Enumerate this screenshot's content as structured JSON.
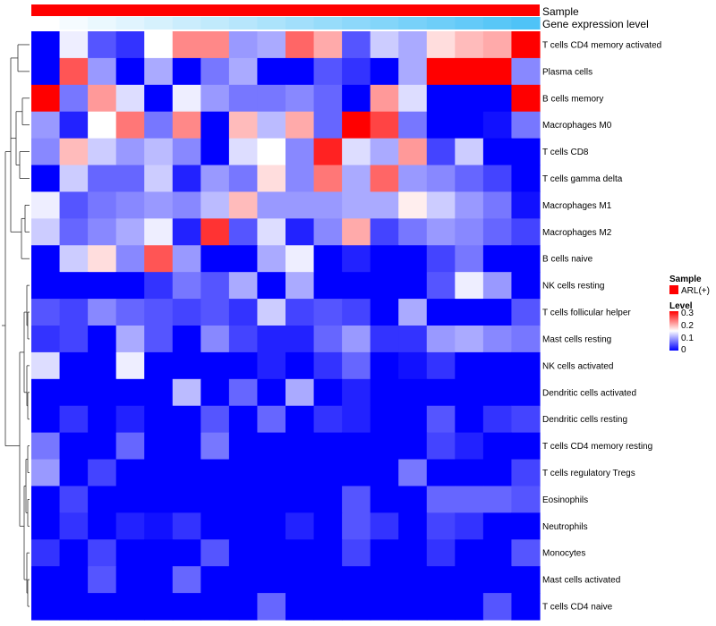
{
  "chart_data": {
    "type": "heatmap",
    "annotation_rows": [
      "Sample",
      "Gene expression level"
    ],
    "rows": [
      "T cells CD4 memory activated",
      "Plasma cells",
      "B cells memory",
      "Macrophages M0",
      "T cells CD8",
      "T cells gamma delta",
      "Macrophages M1",
      "Macrophages M2",
      "B cells naive",
      "NK cells resting",
      "T cells follicular helper",
      "Mast cells resting",
      "NK cells activated",
      "Dendritic cells activated",
      "Dendritic cells resting",
      "T cells CD4 memory resting",
      "T cells regulatory  Tregs",
      "Eosinophils",
      "Neutrophils",
      "Monocytes",
      "Mast cells activated",
      "T cells CD4 naive"
    ],
    "n_columns": 18,
    "values": [
      [
        0.0,
        0.14,
        0.05,
        0.03,
        0.15,
        0.22,
        0.22,
        0.09,
        0.1,
        0.24,
        0.2,
        0.05,
        0.12,
        0.1,
        0.17,
        0.19,
        0.2,
        0.3
      ],
      [
        0.0,
        0.25,
        0.09,
        0.0,
        0.1,
        0.0,
        0.07,
        0.1,
        0.0,
        0.0,
        0.05,
        0.03,
        0.0,
        0.1,
        0.3,
        0.3,
        0.3,
        0.08
      ],
      [
        0.3,
        0.07,
        0.21,
        0.13,
        0.0,
        0.14,
        0.09,
        0.07,
        0.07,
        0.08,
        0.06,
        0.0,
        0.21,
        0.13,
        0.0,
        0.0,
        0.0,
        0.3
      ],
      [
        0.09,
        0.02,
        0.15,
        0.23,
        0.07,
        0.22,
        0.0,
        0.19,
        0.11,
        0.2,
        0.06,
        0.3,
        0.26,
        0.07,
        0.0,
        0.0,
        0.01,
        0.07
      ],
      [
        0.08,
        0.19,
        0.12,
        0.09,
        0.11,
        0.08,
        0.0,
        0.13,
        0.15,
        0.08,
        0.28,
        0.13,
        0.1,
        0.21,
        0.04,
        0.12,
        0.0,
        0.0
      ],
      [
        0.0,
        0.12,
        0.06,
        0.06,
        0.12,
        0.02,
        0.09,
        0.07,
        0.17,
        0.08,
        0.23,
        0.1,
        0.24,
        0.09,
        0.08,
        0.06,
        0.04,
        0.0
      ],
      [
        0.14,
        0.05,
        0.07,
        0.08,
        0.09,
        0.08,
        0.11,
        0.19,
        0.09,
        0.09,
        0.09,
        0.1,
        0.1,
        0.16,
        0.12,
        0.09,
        0.07,
        0.01
      ],
      [
        0.12,
        0.06,
        0.08,
        0.1,
        0.14,
        0.02,
        0.27,
        0.05,
        0.13,
        0.02,
        0.08,
        0.2,
        0.04,
        0.07,
        0.09,
        0.08,
        0.06,
        0.04
      ],
      [
        0.0,
        0.12,
        0.17,
        0.08,
        0.25,
        0.09,
        0.0,
        0.0,
        0.1,
        0.14,
        0.0,
        0.02,
        0.0,
        0.0,
        0.04,
        0.07,
        0.0,
        0.0
      ],
      [
        0.0,
        0.0,
        0.0,
        0.0,
        0.03,
        0.07,
        0.05,
        0.1,
        0.0,
        0.1,
        0.0,
        0.0,
        0.0,
        0.0,
        0.05,
        0.14,
        0.09,
        0.0
      ],
      [
        0.05,
        0.04,
        0.08,
        0.06,
        0.05,
        0.04,
        0.05,
        0.03,
        0.12,
        0.04,
        0.05,
        0.04,
        0.0,
        0.1,
        0.0,
        0.0,
        0.0,
        0.05
      ],
      [
        0.03,
        0.04,
        0.0,
        0.1,
        0.05,
        0.0,
        0.08,
        0.04,
        0.02,
        0.02,
        0.06,
        0.09,
        0.03,
        0.03,
        0.09,
        0.1,
        0.08,
        0.07
      ],
      [
        0.13,
        0.0,
        0.0,
        0.14,
        0.0,
        0.0,
        0.0,
        0.0,
        0.02,
        0.0,
        0.03,
        0.06,
        0.0,
        0.01,
        0.03,
        0.0,
        0.0,
        0.0
      ],
      [
        0.0,
        0.0,
        0.0,
        0.0,
        0.0,
        0.11,
        0.0,
        0.06,
        0.0,
        0.1,
        0.0,
        0.02,
        0.0,
        0.0,
        0.0,
        0.0,
        0.0,
        0.0
      ],
      [
        0.0,
        0.03,
        0.0,
        0.02,
        0.0,
        0.0,
        0.05,
        0.0,
        0.06,
        0.0,
        0.03,
        0.02,
        0.0,
        0.0,
        0.05,
        0.0,
        0.03,
        0.04
      ],
      [
        0.07,
        0.0,
        0.0,
        0.06,
        0.0,
        0.0,
        0.07,
        0.0,
        0.0,
        0.0,
        0.0,
        0.0,
        0.0,
        0.0,
        0.04,
        0.02,
        0.0,
        0.0
      ],
      [
        0.09,
        0.0,
        0.04,
        0.0,
        0.0,
        0.0,
        0.0,
        0.0,
        0.0,
        0.0,
        0.0,
        0.0,
        0.0,
        0.07,
        0.0,
        0.0,
        0.0,
        0.04
      ],
      [
        0.0,
        0.04,
        0.0,
        0.0,
        0.0,
        0.0,
        0.0,
        0.0,
        0.0,
        0.0,
        0.0,
        0.05,
        0.0,
        0.0,
        0.06,
        0.06,
        0.06,
        0.05
      ],
      [
        0.0,
        0.03,
        0.0,
        0.02,
        0.01,
        0.03,
        0.0,
        0.0,
        0.0,
        0.02,
        0.0,
        0.05,
        0.03,
        0.0,
        0.04,
        0.03,
        0.0,
        0.0
      ],
      [
        0.03,
        0.0,
        0.04,
        0.0,
        0.0,
        0.0,
        0.05,
        0.0,
        0.0,
        0.0,
        0.0,
        0.04,
        0.0,
        0.0,
        0.03,
        0.0,
        0.0,
        0.05
      ],
      [
        0.0,
        0.0,
        0.05,
        0.0,
        0.0,
        0.06,
        0.0,
        0.0,
        0.0,
        0.0,
        0.0,
        0.0,
        0.0,
        0.0,
        0.0,
        0.0,
        0.0,
        0.0
      ],
      [
        0.0,
        0.0,
        0.0,
        0.0,
        0.0,
        0.0,
        0.0,
        0.0,
        0.06,
        0.0,
        0.0,
        0.0,
        0.0,
        0.0,
        0.0,
        0.0,
        0.05,
        0.0
      ]
    ],
    "color_scale": {
      "low": "#0000ff",
      "mid": "#ffffff",
      "high": "#ff0000",
      "min": 0,
      "mid_value": 0.15,
      "max": 0.3
    },
    "sample_annotation": {
      "label": "ARL(+)",
      "color": "#ff0000"
    },
    "gene_expression_gradient": [
      "#ffffff",
      "#4fc3f7"
    ],
    "legend": {
      "sample_title": "Sample",
      "sample_entry": "ARL(+)",
      "level_title": "Level",
      "level_ticks": [
        "0.3",
        "0.2",
        "0.1",
        "0"
      ],
      "placement": "right"
    },
    "dendrogram": "rows"
  }
}
